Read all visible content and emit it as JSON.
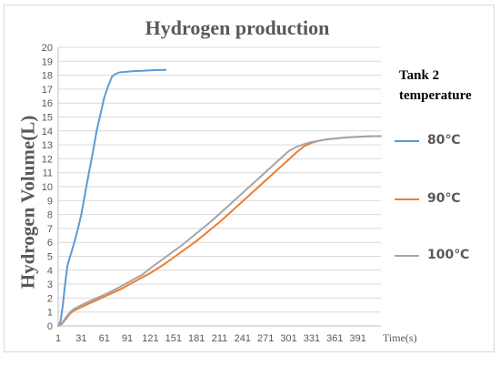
{
  "chart_data": {
    "type": "line",
    "title": "Hydrogen production",
    "xlabel": "Time(s)",
    "ylabel": "Hydrogen Volume(L)",
    "legend_title": "Tank 2 temperature",
    "legend_position": "right",
    "xlim": [
      1,
      421
    ],
    "ylim": [
      0,
      20
    ],
    "x_ticks": [
      1,
      31,
      61,
      91,
      121,
      151,
      181,
      211,
      241,
      271,
      301,
      331,
      361,
      391
    ],
    "y_ticks": [
      0,
      1,
      2,
      3,
      4,
      5,
      6,
      7,
      8,
      9,
      10,
      11,
      12,
      13,
      14,
      15,
      16,
      17,
      18,
      19,
      20
    ],
    "grid": true,
    "series": [
      {
        "name": "80℃",
        "color": "#5b9bd5",
        "points": [
          [
            1,
            0
          ],
          [
            4,
            0.3
          ],
          [
            7,
            1.5
          ],
          [
            10,
            3
          ],
          [
            13,
            4.3
          ],
          [
            16,
            4.9
          ],
          [
            21,
            5.8
          ],
          [
            26,
            6.8
          ],
          [
            31,
            8
          ],
          [
            36,
            9.5
          ],
          [
            41,
            11
          ],
          [
            46,
            12.4
          ],
          [
            51,
            14
          ],
          [
            56,
            15.2
          ],
          [
            61,
            16.4
          ],
          [
            66,
            17.2
          ],
          [
            71,
            17.9
          ],
          [
            76,
            18.1
          ],
          [
            81,
            18.2
          ],
          [
            91,
            18.25
          ],
          [
            101,
            18.3
          ],
          [
            111,
            18.32
          ],
          [
            121,
            18.35
          ],
          [
            131,
            18.37
          ],
          [
            141,
            18.38
          ]
        ]
      },
      {
        "name": "90℃",
        "color": "#ed7d31",
        "points": [
          [
            1,
            0
          ],
          [
            6,
            0.15
          ],
          [
            11,
            0.5
          ],
          [
            16,
            0.85
          ],
          [
            21,
            1.1
          ],
          [
            31,
            1.35
          ],
          [
            41,
            1.6
          ],
          [
            51,
            1.85
          ],
          [
            61,
            2.1
          ],
          [
            71,
            2.35
          ],
          [
            81,
            2.6
          ],
          [
            91,
            2.9
          ],
          [
            101,
            3.2
          ],
          [
            111,
            3.5
          ],
          [
            121,
            3.8
          ],
          [
            131,
            4.15
          ],
          [
            141,
            4.5
          ],
          [
            151,
            4.9
          ],
          [
            161,
            5.3
          ],
          [
            171,
            5.7
          ],
          [
            181,
            6.1
          ],
          [
            191,
            6.55
          ],
          [
            201,
            7.0
          ],
          [
            211,
            7.45
          ],
          [
            221,
            7.95
          ],
          [
            231,
            8.45
          ],
          [
            241,
            8.95
          ],
          [
            251,
            9.45
          ],
          [
            261,
            9.95
          ],
          [
            271,
            10.45
          ],
          [
            281,
            10.95
          ],
          [
            291,
            11.45
          ],
          [
            301,
            11.95
          ],
          [
            311,
            12.45
          ],
          [
            321,
            12.9
          ],
          [
            331,
            13.15
          ],
          [
            341,
            13.3
          ],
          [
            351,
            13.4
          ],
          [
            361,
            13.45
          ],
          [
            371,
            13.5
          ],
          [
            381,
            13.55
          ],
          [
            391,
            13.58
          ],
          [
            401,
            13.6
          ],
          [
            411,
            13.62
          ],
          [
            421,
            13.63
          ]
        ]
      },
      {
        "name": "100℃",
        "color": "#a5a5a5",
        "points": [
          [
            1,
            0
          ],
          [
            6,
            0.2
          ],
          [
            11,
            0.6
          ],
          [
            16,
            0.95
          ],
          [
            21,
            1.2
          ],
          [
            31,
            1.5
          ],
          [
            41,
            1.75
          ],
          [
            51,
            2.0
          ],
          [
            61,
            2.25
          ],
          [
            71,
            2.5
          ],
          [
            81,
            2.8
          ],
          [
            91,
            3.1
          ],
          [
            101,
            3.4
          ],
          [
            111,
            3.7
          ],
          [
            121,
            4.15
          ],
          [
            131,
            4.55
          ],
          [
            141,
            4.95
          ],
          [
            151,
            5.35
          ],
          [
            161,
            5.75
          ],
          [
            171,
            6.2
          ],
          [
            181,
            6.65
          ],
          [
            191,
            7.1
          ],
          [
            201,
            7.55
          ],
          [
            211,
            8.05
          ],
          [
            221,
            8.55
          ],
          [
            231,
            9.05
          ],
          [
            241,
            9.55
          ],
          [
            251,
            10.05
          ],
          [
            261,
            10.55
          ],
          [
            271,
            11.05
          ],
          [
            281,
            11.55
          ],
          [
            291,
            12.05
          ],
          [
            301,
            12.55
          ],
          [
            311,
            12.85
          ],
          [
            321,
            13.05
          ],
          [
            331,
            13.2
          ],
          [
            341,
            13.3
          ],
          [
            351,
            13.4
          ],
          [
            361,
            13.45
          ],
          [
            371,
            13.5
          ],
          [
            381,
            13.55
          ],
          [
            391,
            13.58
          ],
          [
            401,
            13.6
          ],
          [
            411,
            13.62
          ],
          [
            421,
            13.63
          ]
        ]
      }
    ]
  }
}
